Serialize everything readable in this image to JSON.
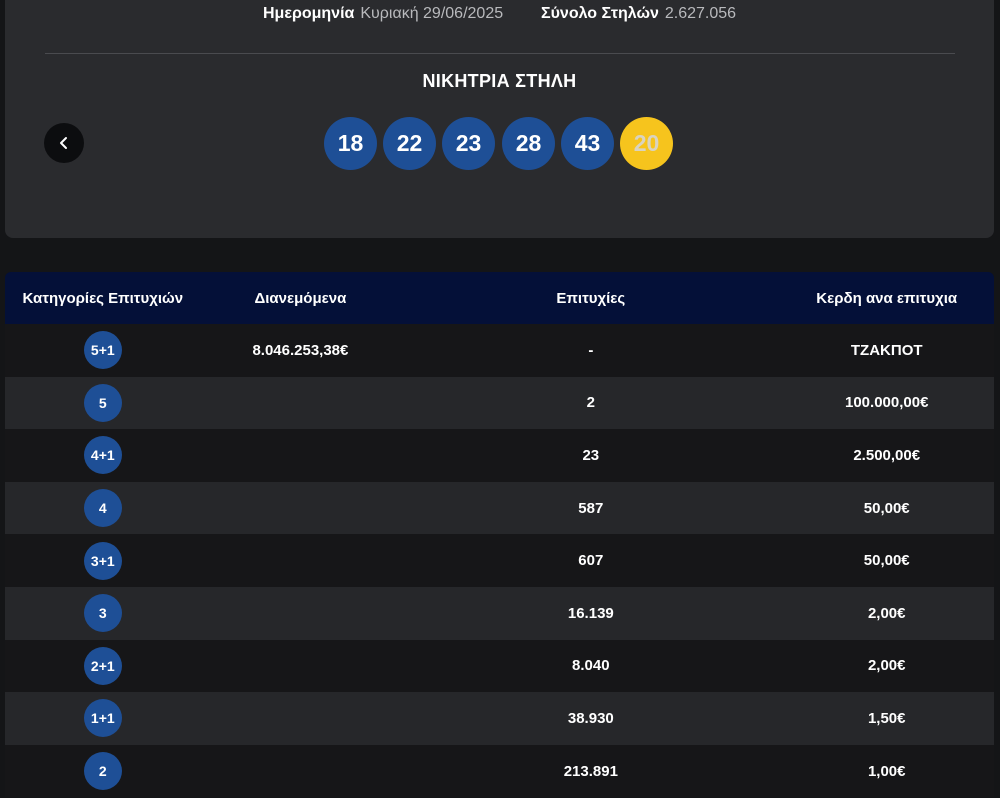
{
  "draw": {
    "date_label": "Ημερομηνία",
    "date_value": "Κυριακή 29/06/2025",
    "columns_label": "Σύνολο Στηλών",
    "columns_value": "2.627.056",
    "winning_title": "ΝΙΚΗΤΡΙΑ ΣΤΗΛΗ",
    "numbers": [
      "18",
      "22",
      "23",
      "28",
      "43"
    ],
    "bonus": "20",
    "colors": {
      "ball": "#1e4f96",
      "bonus_ball": "#f6c41d",
      "header": "#041038"
    }
  },
  "table": {
    "headers": {
      "category": "Κατηγορίες Επιτυχιών",
      "distributed": "Διανεμόμενα",
      "winners": "Επιτυχίες",
      "prize": "Κερδη ανα επιτυχια"
    },
    "rows": [
      {
        "category": "5+1",
        "distributed": "8.046.253,38€",
        "winners": "-",
        "prize": "ΤΖΑΚΠΟΤ"
      },
      {
        "category": "5",
        "distributed": "",
        "winners": "2",
        "prize": "100.000,00€"
      },
      {
        "category": "4+1",
        "distributed": "",
        "winners": "23",
        "prize": "2.500,00€"
      },
      {
        "category": "4",
        "distributed": "",
        "winners": "587",
        "prize": "50,00€"
      },
      {
        "category": "3+1",
        "distributed": "",
        "winners": "607",
        "prize": "50,00€"
      },
      {
        "category": "3",
        "distributed": "",
        "winners": "16.139",
        "prize": "2,00€"
      },
      {
        "category": "2+1",
        "distributed": "",
        "winners": "8.040",
        "prize": "2,00€"
      },
      {
        "category": "1+1",
        "distributed": "",
        "winners": "38.930",
        "prize": "1,50€"
      },
      {
        "category": "2",
        "distributed": "",
        "winners": "213.891",
        "prize": "1,00€"
      }
    ]
  }
}
